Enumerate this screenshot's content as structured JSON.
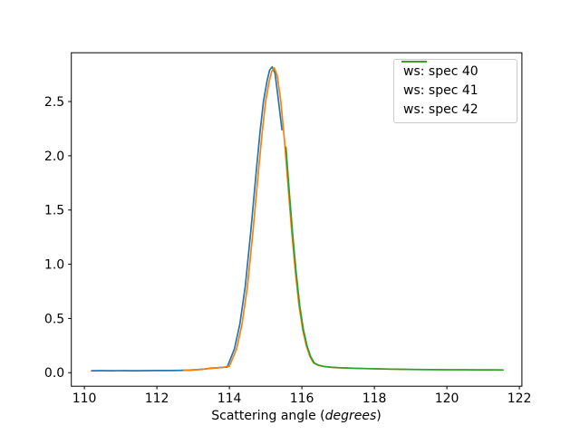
{
  "figure": {
    "background": "#ffffff",
    "xlabel_prefix": "Scattering angle (",
    "xlabel_italic": "degrees",
    "xlabel_suffix": ")"
  },
  "chart_data": {
    "type": "line",
    "title": "",
    "xlabel": "Scattering angle (degrees)",
    "ylabel": "",
    "grid": false,
    "legend_position": "upper right",
    "xlim": [
      109.64,
      122.07
    ],
    "ylim": [
      -0.125,
      2.95
    ],
    "xticks": [
      {
        "v": 110,
        "label": "110"
      },
      {
        "v": 112,
        "label": "112"
      },
      {
        "v": 114,
        "label": "114"
      },
      {
        "v": 116,
        "label": "116"
      },
      {
        "v": 118,
        "label": "118"
      },
      {
        "v": 120,
        "label": "120"
      },
      {
        "v": 122,
        "label": "122"
      }
    ],
    "yticks": [
      {
        "v": 0.0,
        "label": "0.0"
      },
      {
        "v": 0.5,
        "label": "0.5"
      },
      {
        "v": 1.0,
        "label": "1.0"
      },
      {
        "v": 1.5,
        "label": "1.5"
      },
      {
        "v": 2.0,
        "label": "2.0"
      },
      {
        "v": 2.5,
        "label": "2.5"
      }
    ],
    "axis_color": "#000000",
    "series": [
      {
        "name": "ws: spec 40",
        "color": "#1f77b4",
        "points": [
          [
            110.2,
            0.018
          ],
          [
            110.5,
            0.019
          ],
          [
            110.8,
            0.018
          ],
          [
            111.1,
            0.019
          ],
          [
            111.4,
            0.018
          ],
          [
            111.7,
            0.019
          ],
          [
            112.0,
            0.02
          ],
          [
            112.3,
            0.02
          ],
          [
            112.6,
            0.021
          ],
          [
            112.9,
            0.024
          ],
          [
            113.1,
            0.028
          ],
          [
            113.3,
            0.034
          ],
          [
            113.5,
            0.042
          ],
          [
            113.7,
            0.046
          ],
          [
            113.94,
            0.052
          ],
          [
            114.14,
            0.22
          ],
          [
            114.29,
            0.45
          ],
          [
            114.44,
            0.8
          ],
          [
            114.59,
            1.3
          ],
          [
            114.74,
            1.85
          ],
          [
            114.84,
            2.2
          ],
          [
            114.94,
            2.5
          ],
          [
            115.04,
            2.69
          ],
          [
            115.11,
            2.79
          ],
          [
            115.18,
            2.82
          ],
          [
            115.26,
            2.76
          ],
          [
            115.35,
            2.52
          ],
          [
            115.45,
            2.24
          ]
        ]
      },
      {
        "name": "ws: spec 41",
        "color": "#ff7f0e",
        "points": [
          [
            112.75,
            0.021
          ],
          [
            113.0,
            0.024
          ],
          [
            113.2,
            0.029
          ],
          [
            113.4,
            0.036
          ],
          [
            113.6,
            0.042
          ],
          [
            113.8,
            0.048
          ],
          [
            114.0,
            0.06
          ],
          [
            114.2,
            0.22
          ],
          [
            114.35,
            0.45
          ],
          [
            114.5,
            0.8
          ],
          [
            114.65,
            1.3
          ],
          [
            114.8,
            1.85
          ],
          [
            114.9,
            2.2
          ],
          [
            115.0,
            2.5
          ],
          [
            115.1,
            2.69
          ],
          [
            115.17,
            2.78
          ],
          [
            115.24,
            2.81
          ],
          [
            115.32,
            2.74
          ],
          [
            115.42,
            2.5
          ],
          [
            115.52,
            2.14
          ],
          [
            115.62,
            1.72
          ],
          [
            115.72,
            1.3
          ],
          [
            115.82,
            0.93
          ],
          [
            115.92,
            0.62
          ],
          [
            116.02,
            0.4
          ],
          [
            116.12,
            0.25
          ],
          [
            116.22,
            0.15
          ],
          [
            116.32,
            0.09
          ],
          [
            116.45,
            0.068
          ],
          [
            116.6,
            0.057
          ],
          [
            116.8,
            0.05
          ],
          [
            117.0,
            0.046
          ],
          [
            117.5,
            0.04
          ],
          [
            118.0,
            0.036
          ],
          [
            118.5,
            0.033
          ],
          [
            118.85,
            0.031
          ]
        ]
      },
      {
        "name": "ws: spec 42",
        "color": "#2ca02c",
        "points": [
          [
            115.56,
            2.08
          ],
          [
            115.64,
            1.72
          ],
          [
            115.74,
            1.3
          ],
          [
            115.84,
            0.93
          ],
          [
            115.94,
            0.62
          ],
          [
            116.04,
            0.4
          ],
          [
            116.14,
            0.25
          ],
          [
            116.24,
            0.15
          ],
          [
            116.34,
            0.09
          ],
          [
            116.47,
            0.068
          ],
          [
            116.62,
            0.057
          ],
          [
            116.82,
            0.05
          ],
          [
            117.02,
            0.046
          ],
          [
            117.3,
            0.042
          ],
          [
            117.6,
            0.039
          ],
          [
            118.0,
            0.036
          ],
          [
            118.4,
            0.033
          ],
          [
            118.8,
            0.031
          ],
          [
            119.2,
            0.029
          ],
          [
            119.6,
            0.028
          ],
          [
            120.0,
            0.027
          ],
          [
            120.4,
            0.027
          ],
          [
            120.8,
            0.026
          ],
          [
            121.2,
            0.026
          ],
          [
            121.55,
            0.025
          ]
        ]
      }
    ]
  }
}
